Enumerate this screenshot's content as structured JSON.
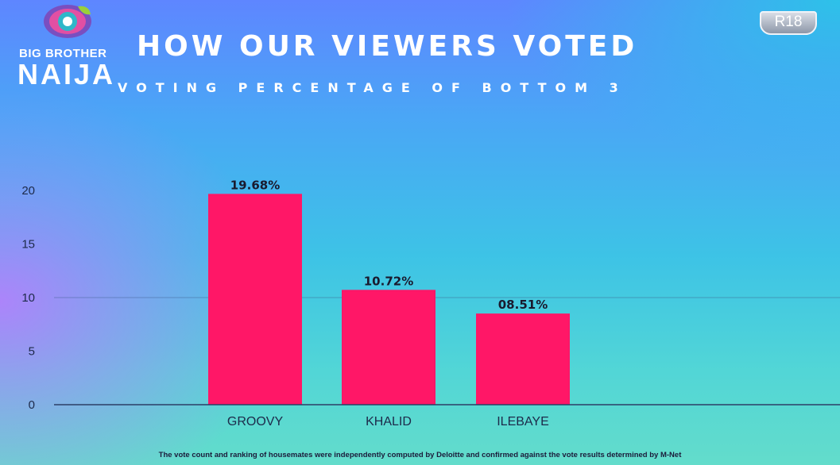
{
  "logo": {
    "line1": "BIG BROTHER",
    "line2": "NAIJA",
    "icon": "eye-icon",
    "colors": {
      "outer": "#7a4fc0",
      "ring": "#e24fa3",
      "iris": "#2fb7c9",
      "leaf": "#9bcf3a"
    }
  },
  "header": {
    "title": "HOW OUR VIEWERS VOTED",
    "subtitle": "VOTING PERCENTAGE OF BOTTOM 3"
  },
  "rating_badge": {
    "label": "R18"
  },
  "chart_data": {
    "type": "bar",
    "title": "VOTING PERCENTAGE OF BOTTOM 3",
    "categories": [
      "GROOVY",
      "KHALID",
      "ILEBAYE"
    ],
    "values": [
      19.68,
      10.72,
      8.51
    ],
    "data_labels": [
      "19.68%",
      "10.72%",
      "08.51%"
    ],
    "yticks": [
      0,
      5,
      10,
      15,
      20
    ],
    "ylim": [
      0,
      22
    ],
    "xlabel": "",
    "ylabel": "",
    "bar_color": "#ff1767",
    "gridlines": [
      10
    ],
    "grid": "single horizontal line at 10",
    "legend": "none"
  },
  "footnote": "The vote count and ranking of housemates were independently computed by Deloitte and confirmed against the vote results determined by M-Net"
}
